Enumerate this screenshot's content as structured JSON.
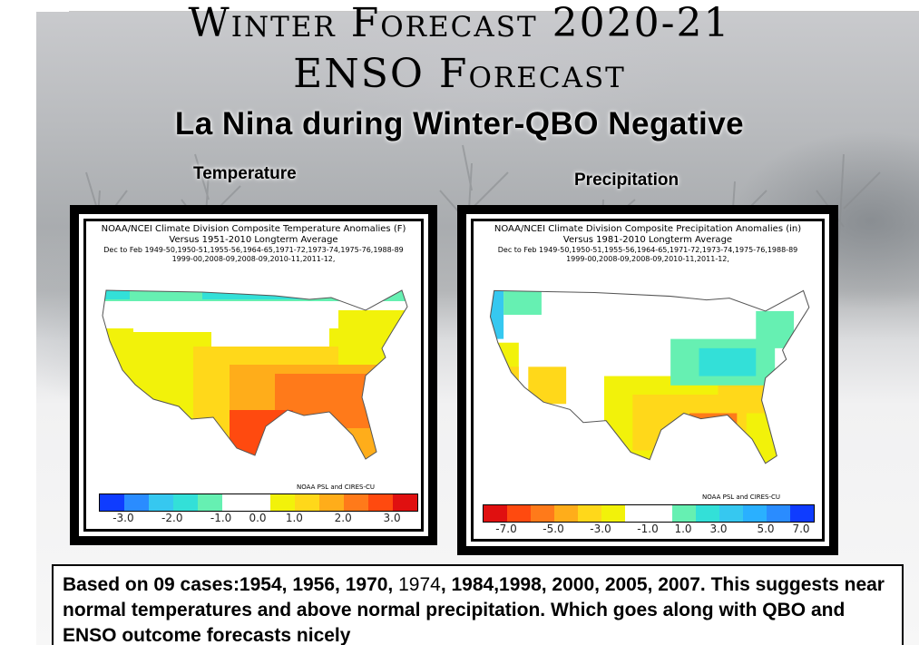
{
  "slide": {
    "title_line1": "Winter Forecast 2020-21",
    "title_line2": "ENSO Forecast",
    "subtitle": "La Nina during Winter-QBO Negative"
  },
  "temperature_panel": {
    "label": "Temperature",
    "map_title": "NOAA/NCEI Climate Division Composite Temperature Anomalies (F)",
    "map_subtitle": "Versus 1951-2010 Longterm Average",
    "period_line1": "Dec to Feb   1949-50,1950-51,1955-56,1964-65,1971-72,1973-74,1975-76,1988-89",
    "period_line2": "1999-00,2008-09,2008-09,2010-11,2011-12,",
    "credit": "NOAA PSL and CIRES-CU",
    "scale_ticks": [
      "-3.0",
      "-2.0",
      "-1.0",
      "0.0",
      "1.0",
      "2.0",
      "3.0"
    ],
    "scale_colors": [
      "#0f3cff",
      "#2a8cff",
      "#36c8f0",
      "#33e0d8",
      "#66f0b2",
      "#ffffff",
      "#ffffff",
      "#f2f20a",
      "#ffd81a",
      "#ffad1a",
      "#ff7a1a",
      "#ff4a0f",
      "#e01010"
    ]
  },
  "precipitation_panel": {
    "label": "Precipitation",
    "map_title": "NOAA/NCEI Climate Division Composite Precipitation Anomalies (in)",
    "map_subtitle": "Versus 1981-2010 Longterm Average",
    "period_line1": "Dec to Feb   1949-50,1950-51,1955-56,1964-65,1971-72,1973-74,1975-76,1988-89",
    "period_line2": "1999-00,2008-09,2008-09,2010-11,2011-12,",
    "credit": "NOAA PSL and CIRES-CU",
    "scale_ticks": [
      "-7.0",
      "-5.0",
      "-3.0",
      "-1.0",
      "1.0",
      "3.0",
      "5.0",
      "7.0"
    ],
    "scale_colors": [
      "#e01010",
      "#ff4a0f",
      "#ff7a1a",
      "#ffad1a",
      "#ffd81a",
      "#f2f20a",
      "#ffffff",
      "#ffffff",
      "#66f0b2",
      "#33e0d8",
      "#36c8f0",
      "#2ab0ff",
      "#2a8cff",
      "#0f3cff"
    ]
  },
  "caption": {
    "part1": "Based on 09 cases:1954, 1956, 1970, ",
    "part2": "1974",
    "part3": ", 1984,1998, 2000, 2005, 2007.  This suggests near normal temperatures and above normal precipitation.  Which goes along with QBO and ENSO outcome forecasts nicely"
  }
}
